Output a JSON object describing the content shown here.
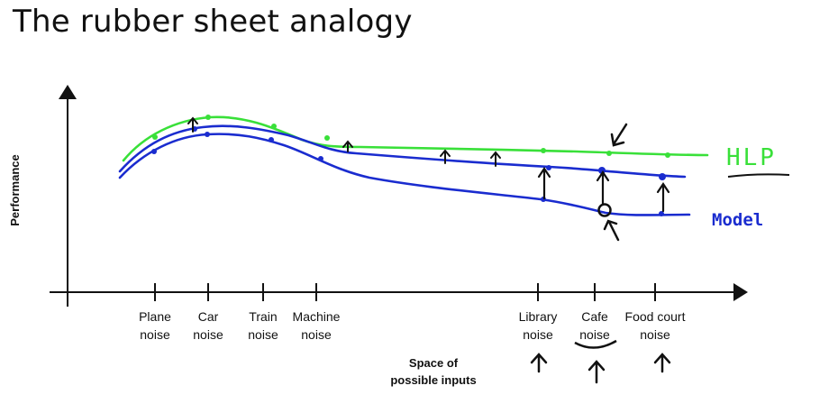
{
  "title": "The rubber sheet analogy",
  "y_axis_label": "Performance",
  "x_axis_label": [
    "Space of",
    "possible inputs"
  ],
  "legend": {
    "hlp": "HLP",
    "model": "Model"
  },
  "colors": {
    "hlp": "#39e039",
    "model": "#1a2ccf",
    "annotation": "#111111"
  },
  "ticks": [
    {
      "lines": [
        "Plane",
        "noise"
      ]
    },
    {
      "lines": [
        "Car",
        "noise"
      ]
    },
    {
      "lines": [
        "Train",
        "noise"
      ]
    },
    {
      "lines": [
        "Machine",
        "noise"
      ]
    },
    {
      "lines": [
        "Library",
        "noise"
      ]
    },
    {
      "lines": [
        "Cafe",
        "noise"
      ]
    },
    {
      "lines": [
        "Food court",
        "noise"
      ]
    }
  ]
}
